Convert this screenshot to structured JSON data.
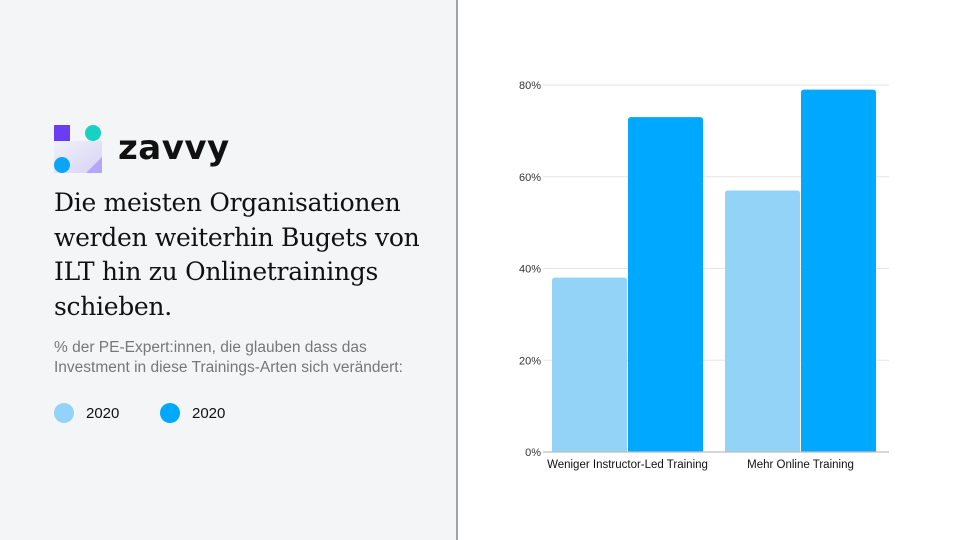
{
  "brand": {
    "name": "zavvy"
  },
  "title": "Die meisten Organisationen werden weiterhin Bugets von ILT hin zu Onlinetrainings schieben.",
  "subtitle": "% der PE-Expert:innen, die glauben dass das Investment in diese Trainings-Arten sich verändert:",
  "legend": [
    {
      "label": "2020",
      "color": "#92d3f7"
    },
    {
      "label": "2020",
      "color": "#00a8ff"
    }
  ],
  "chart_data": {
    "type": "bar",
    "categories": [
      "Weniger Instructor-Led Training",
      "Mehr Online Training"
    ],
    "series": [
      {
        "name": "2020",
        "values": [
          38,
          57
        ],
        "color": "#92d3f7"
      },
      {
        "name": "2020",
        "values": [
          73,
          79
        ],
        "color": "#00a8ff"
      }
    ],
    "ylim": [
      0,
      80
    ],
    "yticks": [
      "0%",
      "20%",
      "40%",
      "60%",
      "80%"
    ],
    "ytick_values": [
      0,
      20,
      40,
      60,
      80
    ],
    "grid": true,
    "legend_placement": "left panel"
  }
}
